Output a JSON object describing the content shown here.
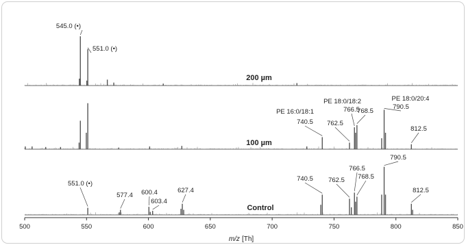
{
  "chart_data": {
    "type": "line",
    "xlabel_italic": "m/z",
    "xlabel_unit": "[Th]",
    "xlim": [
      500,
      850
    ],
    "x_ticks": [
      "500",
      "550",
      "600",
      "650",
      "700",
      "750",
      "800",
      "850"
    ],
    "panels": [
      {
        "title": "200 µm",
        "peaks": [
          {
            "x": 545.0,
            "y": 1.0
          },
          {
            "x": 551.0,
            "y": 0.74
          },
          {
            "x": 544.2,
            "y": 0.14
          },
          {
            "x": 550.2,
            "y": 0.1
          },
          {
            "x": 566.8,
            "y": 0.12
          },
          {
            "x": 572.0,
            "y": 0.06
          },
          {
            "x": 612.0,
            "y": 0.04
          },
          {
            "x": 720.0,
            "y": 0.05
          }
        ],
        "annotations": [
          {
            "text": "545.0 (•)",
            "x": 545.0,
            "y": 1.0
          },
          {
            "text": "551.0 (•)",
            "x": 551.0,
            "y": 0.74
          }
        ]
      },
      {
        "title": "100 µm",
        "peaks": [
          {
            "x": 500.5,
            "y": 0.05
          },
          {
            "x": 506.0,
            "y": 0.05
          },
          {
            "x": 517.0,
            "y": 0.04
          },
          {
            "x": 529.0,
            "y": 0.04
          },
          {
            "x": 545.0,
            "y": 0.52
          },
          {
            "x": 551.0,
            "y": 0.84
          },
          {
            "x": 549.8,
            "y": 0.3
          },
          {
            "x": 544.0,
            "y": 0.12
          },
          {
            "x": 576.0,
            "y": 0.03
          },
          {
            "x": 601.0,
            "y": 0.05
          },
          {
            "x": 627.0,
            "y": 0.06
          },
          {
            "x": 728.0,
            "y": 0.05
          },
          {
            "x": 740.5,
            "y": 0.22
          },
          {
            "x": 762.5,
            "y": 0.12
          },
          {
            "x": 766.5,
            "y": 0.4
          },
          {
            "x": 768.5,
            "y": 0.44
          },
          {
            "x": 767.4,
            "y": 0.3
          },
          {
            "x": 788.5,
            "y": 0.2
          },
          {
            "x": 790.5,
            "y": 0.72
          },
          {
            "x": 791.6,
            "y": 0.3
          },
          {
            "x": 812.5,
            "y": 0.09
          }
        ],
        "annotations": [
          {
            "text": "PE 16:0/18:1",
            "x": 740.5,
            "y": 0.22
          },
          {
            "text": "740.5",
            "x": 740.5,
            "y": 0.22
          },
          {
            "text": "762.5",
            "x": 762.5,
            "y": 0.12
          },
          {
            "text": "PE 18:0/18:2",
            "x": 766.5,
            "y": 0.4
          },
          {
            "text": "766.5",
            "x": 766.5,
            "y": 0.4
          },
          {
            "text": "768.5",
            "x": 768.5,
            "y": 0.44
          },
          {
            "text": "PE 18:0/20:4",
            "x": 790.5,
            "y": 0.72
          },
          {
            "text": "790.5",
            "x": 790.5,
            "y": 0.72
          },
          {
            "text": "812.5",
            "x": 812.5,
            "y": 0.09
          }
        ]
      },
      {
        "title": "Control",
        "peaks": [
          {
            "x": 551.0,
            "y": 0.14
          },
          {
            "x": 577.4,
            "y": 0.1
          },
          {
            "x": 576.5,
            "y": 0.05
          },
          {
            "x": 600.4,
            "y": 0.16
          },
          {
            "x": 603.4,
            "y": 0.08
          },
          {
            "x": 601.5,
            "y": 0.06
          },
          {
            "x": 627.4,
            "y": 0.22
          },
          {
            "x": 626.3,
            "y": 0.12
          },
          {
            "x": 628.5,
            "y": 0.1
          },
          {
            "x": 740.5,
            "y": 0.4
          },
          {
            "x": 739.3,
            "y": 0.2
          },
          {
            "x": 762.5,
            "y": 0.32
          },
          {
            "x": 764.0,
            "y": 0.15
          },
          {
            "x": 766.5,
            "y": 0.44
          },
          {
            "x": 768.5,
            "y": 0.36
          },
          {
            "x": 767.4,
            "y": 0.26
          },
          {
            "x": 788.5,
            "y": 0.4
          },
          {
            "x": 790.5,
            "y": 0.95
          },
          {
            "x": 791.6,
            "y": 0.4
          },
          {
            "x": 812.5,
            "y": 0.22
          },
          {
            "x": 813.5,
            "y": 0.1
          }
        ],
        "annotations": [
          {
            "text": "551.0 (•)",
            "x": 551.0,
            "y": 0.14
          },
          {
            "text": "577.4",
            "x": 577.4,
            "y": 0.1
          },
          {
            "text": "600.4",
            "x": 600.4,
            "y": 0.16
          },
          {
            "text": "603.4",
            "x": 603.4,
            "y": 0.08
          },
          {
            "text": "627.4",
            "x": 627.4,
            "y": 0.22
          },
          {
            "text": "740.5",
            "x": 740.5,
            "y": 0.4
          },
          {
            "text": "762.5",
            "x": 762.5,
            "y": 0.32
          },
          {
            "text": "766.5",
            "x": 766.5,
            "y": 0.44
          },
          {
            "text": "768.5",
            "x": 768.5,
            "y": 0.36
          },
          {
            "text": "790.5",
            "x": 790.5,
            "y": 0.95
          },
          {
            "text": "812.5",
            "x": 812.5,
            "y": 0.22
          }
        ]
      }
    ],
    "colors": {
      "trace": "#555555",
      "axis": "#333333",
      "leader": "#444444"
    }
  }
}
